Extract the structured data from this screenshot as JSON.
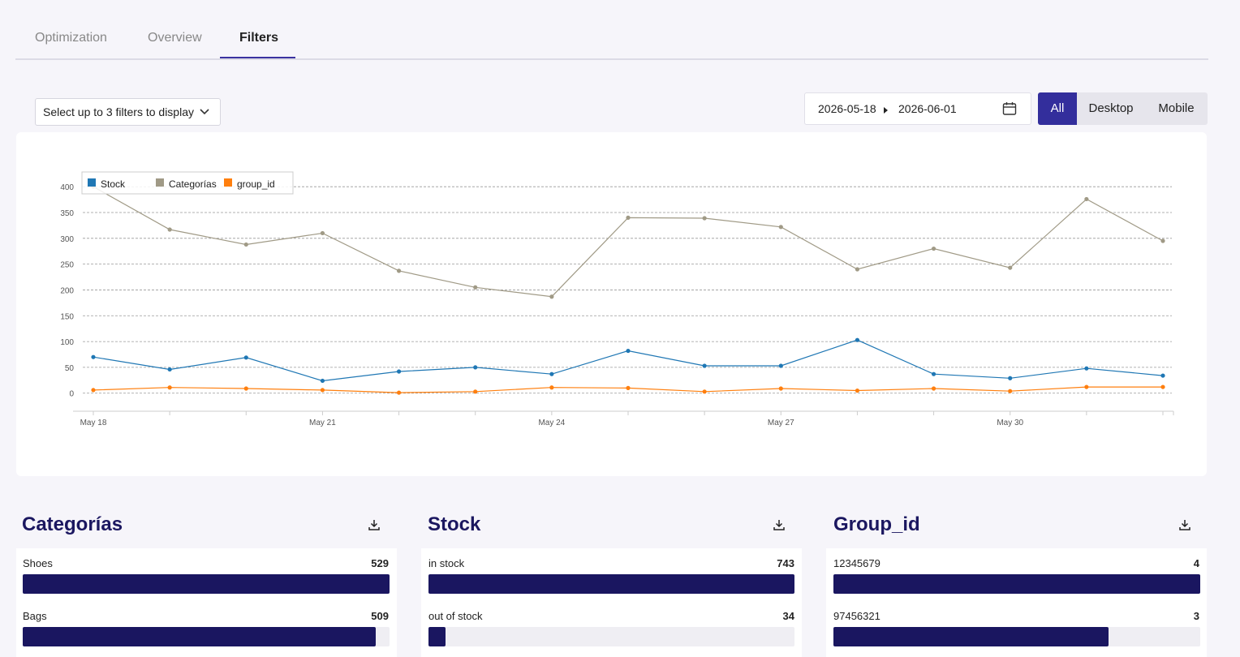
{
  "tabs": [
    {
      "label": "Optimization",
      "active": false
    },
    {
      "label": "Overview",
      "active": false
    },
    {
      "label": "Filters",
      "active": true
    }
  ],
  "filter_select": {
    "label": "Select up to 3 filters to display"
  },
  "date_range": {
    "start": "2026-05-18",
    "end": "2026-06-01"
  },
  "device_toggle": {
    "options": [
      "All",
      "Desktop",
      "Mobile"
    ],
    "selected": "All"
  },
  "colors": {
    "accent": "#332e9c",
    "bar": "#1a1660",
    "stock": "#1f77b4",
    "categorias": "#a09a86",
    "group_id": "#ff7f0e"
  },
  "chart_data": {
    "type": "line",
    "x": [
      "May 18",
      "May 19",
      "May 20",
      "May 21",
      "May 22",
      "May 23",
      "May 24",
      "May 25",
      "May 26",
      "May 27",
      "May 28",
      "May 29",
      "May 30",
      "May 31",
      "Jun 1"
    ],
    "xtick_labels": [
      "May 18",
      "May 21",
      "May 24",
      "May 27",
      "May 30"
    ],
    "yticks": [
      0,
      50,
      100,
      150,
      200,
      250,
      300,
      350,
      400
    ],
    "ylim": [
      -35,
      405
    ],
    "grid": true,
    "legend_position": "top-left",
    "series": [
      {
        "name": "Stock",
        "color": "#1f77b4",
        "values": [
          70,
          46,
          69,
          24,
          42,
          50,
          37,
          82,
          53,
          53,
          103,
          37,
          29,
          48,
          34
        ]
      },
      {
        "name": "Categorías",
        "color": "#a09a86",
        "values": [
          400,
          317,
          288,
          310,
          237,
          205,
          187,
          340,
          339,
          322,
          240,
          280,
          243,
          376,
          295
        ]
      },
      {
        "name": "group_id",
        "color": "#ff7f0e",
        "values": [
          6,
          11,
          9,
          6,
          1,
          3,
          11,
          10,
          3,
          9,
          5,
          9,
          4,
          12,
          12
        ]
      }
    ]
  },
  "cards": [
    {
      "title": "Categorías",
      "rows": [
        {
          "label": "Shoes",
          "value": "529",
          "fraction": 1.0
        },
        {
          "label": "Bags",
          "value": "509",
          "fraction": 0.962
        }
      ]
    },
    {
      "title": "Stock",
      "rows": [
        {
          "label": "in stock",
          "value": "743",
          "fraction": 1.0
        },
        {
          "label": "out of stock",
          "value": "34",
          "fraction": 0.046
        }
      ]
    },
    {
      "title": "Group_id",
      "rows": [
        {
          "label": "12345679",
          "value": "4",
          "fraction": 1.0
        },
        {
          "label": "97456321",
          "value": "3",
          "fraction": 0.75
        }
      ]
    }
  ]
}
